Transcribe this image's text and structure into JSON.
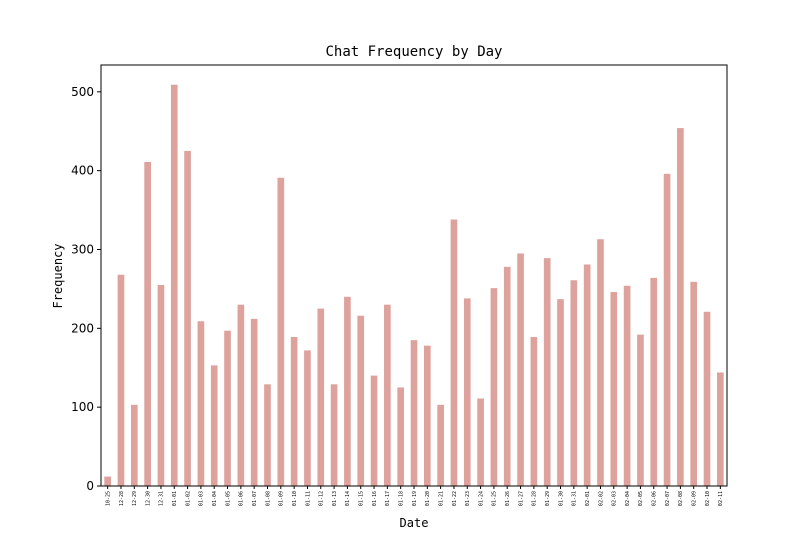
{
  "chart_data": {
    "type": "bar",
    "title": "Chat Frequency by Day",
    "xlabel": "Date",
    "ylabel": "Frequency",
    "ylim": [
      0,
      534
    ],
    "yticks": [
      0,
      100,
      200,
      300,
      400,
      500
    ],
    "bar_color": "#dea29d",
    "categories": [
      "10-25",
      "12-28",
      "12-29",
      "12-30",
      "12-31",
      "01-01",
      "01-02",
      "01-03",
      "01-04",
      "01-05",
      "01-06",
      "01-07",
      "01-08",
      "01-09",
      "01-10",
      "01-11",
      "01-12",
      "01-13",
      "01-14",
      "01-15",
      "01-16",
      "01-17",
      "01-18",
      "01-19",
      "01-20",
      "01-21",
      "01-22",
      "01-23",
      "01-24",
      "01-25",
      "01-26",
      "01-27",
      "01-28",
      "01-29",
      "01-30",
      "01-31",
      "02-01",
      "02-02",
      "02-03",
      "02-04",
      "02-05",
      "02-06",
      "02-07",
      "02-08",
      "02-09",
      "02-10",
      "02-11"
    ],
    "values": [
      12,
      268,
      103,
      411,
      255,
      509,
      425,
      209,
      153,
      197,
      230,
      212,
      129,
      391,
      189,
      172,
      225,
      129,
      240,
      216,
      140,
      230,
      125,
      185,
      178,
      103,
      338,
      238,
      111,
      251,
      278,
      295,
      189,
      289,
      237,
      261,
      281,
      313,
      246,
      254,
      192,
      264,
      396,
      454,
      259,
      221,
      144
    ]
  }
}
